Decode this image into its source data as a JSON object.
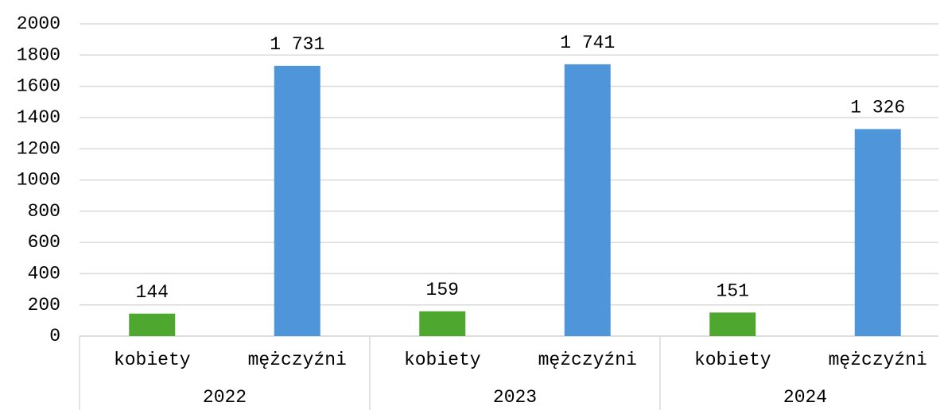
{
  "chart_data": {
    "type": "bar",
    "categories": [
      "2022",
      "2023",
      "2024"
    ],
    "series": [
      {
        "name": "kobiety",
        "color": "#4ea72e",
        "values": [
          144,
          159,
          151
        ],
        "value_labels": [
          "144",
          "159",
          "151"
        ]
      },
      {
        "name": "mężczyźni",
        "color": "#4e95d9",
        "values": [
          1731,
          1741,
          1326
        ],
        "value_labels": [
          "1 731",
          "1 741",
          "1 326"
        ]
      }
    ],
    "ylim": [
      0,
      2000
    ],
    "yticks": [
      0,
      200,
      400,
      600,
      800,
      1000,
      1200,
      1400,
      1600,
      1800,
      2000
    ],
    "grid": true
  }
}
